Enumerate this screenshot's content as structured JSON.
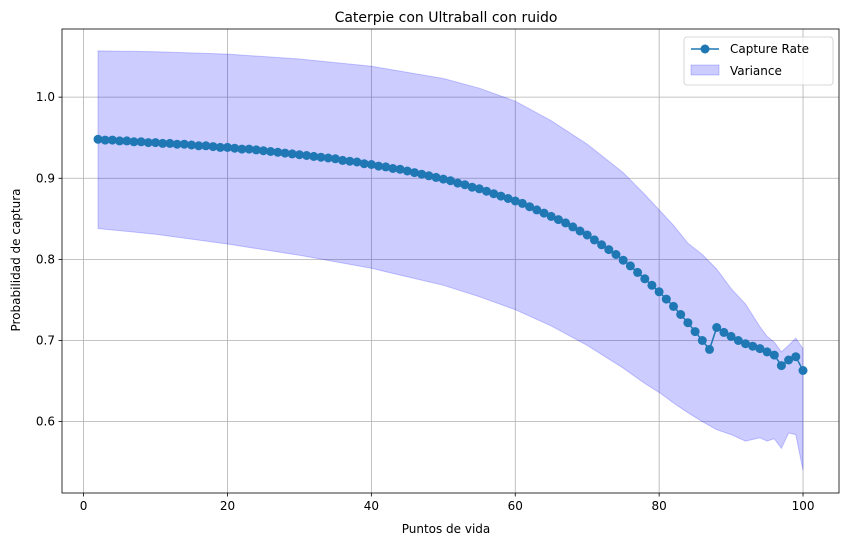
{
  "chart_data": {
    "type": "line",
    "title": "Caterpie con Ultraball con ruido",
    "xlabel": "Puntos de vida",
    "ylabel": "Probabilidad de captura",
    "xlim": [
      -3.0,
      105.0
    ],
    "ylim": [
      0.512,
      1.084
    ],
    "xticks": [
      0,
      20,
      40,
      60,
      80,
      100
    ],
    "yticks": [
      0.6,
      0.7,
      0.8,
      0.9,
      1.0
    ],
    "xtick_labels": [
      "0",
      "20",
      "40",
      "60",
      "80",
      "100"
    ],
    "ytick_labels": [
      "0.6",
      "0.7",
      "0.8",
      "0.9",
      "1.0"
    ],
    "grid": true,
    "legend_position": "top-right",
    "series": [
      {
        "name": "Capture Rate",
        "kind": "line-with-markers",
        "color": "#1f77b4",
        "x": [
          2,
          3,
          4,
          5,
          6,
          7,
          8,
          9,
          10,
          11,
          12,
          13,
          14,
          15,
          16,
          17,
          18,
          19,
          20,
          21,
          22,
          23,
          24,
          25,
          26,
          27,
          28,
          29,
          30,
          31,
          32,
          33,
          34,
          35,
          36,
          37,
          38,
          39,
          40,
          41,
          42,
          43,
          44,
          45,
          46,
          47,
          48,
          49,
          50,
          51,
          52,
          53,
          54,
          55,
          56,
          57,
          58,
          59,
          60,
          61,
          62,
          63,
          64,
          65,
          66,
          67,
          68,
          69,
          70,
          71,
          72,
          73,
          74,
          75,
          76,
          77,
          78,
          79,
          80,
          81,
          82,
          83,
          84,
          85,
          86,
          87,
          88,
          89,
          90,
          91,
          92,
          93,
          94,
          95,
          96,
          97,
          98,
          99,
          100
        ],
        "y": [
          0.948,
          0.947,
          0.947,
          0.946,
          0.946,
          0.945,
          0.945,
          0.944,
          0.944,
          0.943,
          0.943,
          0.942,
          0.942,
          0.941,
          0.94,
          0.94,
          0.939,
          0.938,
          0.938,
          0.937,
          0.936,
          0.936,
          0.935,
          0.934,
          0.933,
          0.932,
          0.931,
          0.93,
          0.929,
          0.928,
          0.927,
          0.926,
          0.925,
          0.924,
          0.922,
          0.921,
          0.92,
          0.918,
          0.917,
          0.915,
          0.914,
          0.912,
          0.911,
          0.909,
          0.907,
          0.905,
          0.903,
          0.901,
          0.899,
          0.897,
          0.894,
          0.892,
          0.889,
          0.887,
          0.884,
          0.881,
          0.878,
          0.875,
          0.872,
          0.869,
          0.865,
          0.861,
          0.857,
          0.853,
          0.849,
          0.845,
          0.84,
          0.835,
          0.83,
          0.824,
          0.818,
          0.812,
          0.806,
          0.799,
          0.792,
          0.784,
          0.776,
          0.768,
          0.76,
          0.751,
          0.742,
          0.732,
          0.722,
          0.711,
          0.7,
          0.689,
          0.716,
          0.71,
          0.705,
          0.7,
          0.696,
          0.693,
          0.69,
          0.686,
          0.682,
          0.669,
          0.676,
          0.68,
          0.663
        ]
      },
      {
        "name": "Variance",
        "kind": "band",
        "color": "#0000ff",
        "opacity": 0.2,
        "x": [
          2,
          10,
          20,
          30,
          40,
          50,
          55,
          60,
          65,
          70,
          75,
          78,
          80,
          82,
          84,
          86,
          88,
          90,
          92,
          94,
          95,
          96,
          97,
          98,
          99,
          100
        ],
        "upper": [
          1.057,
          1.056,
          1.053,
          1.047,
          1.038,
          1.023,
          1.011,
          0.995,
          0.971,
          0.942,
          0.907,
          0.88,
          0.861,
          0.842,
          0.82,
          0.806,
          0.788,
          0.764,
          0.745,
          0.717,
          0.705,
          0.698,
          0.686,
          0.694,
          0.703,
          0.69
        ],
        "lower": [
          0.838,
          0.831,
          0.819,
          0.805,
          0.789,
          0.768,
          0.754,
          0.738,
          0.718,
          0.694,
          0.666,
          0.647,
          0.636,
          0.623,
          0.611,
          0.6,
          0.59,
          0.584,
          0.576,
          0.58,
          0.576,
          0.579,
          0.567,
          0.586,
          0.584,
          0.54
        ]
      }
    ]
  }
}
